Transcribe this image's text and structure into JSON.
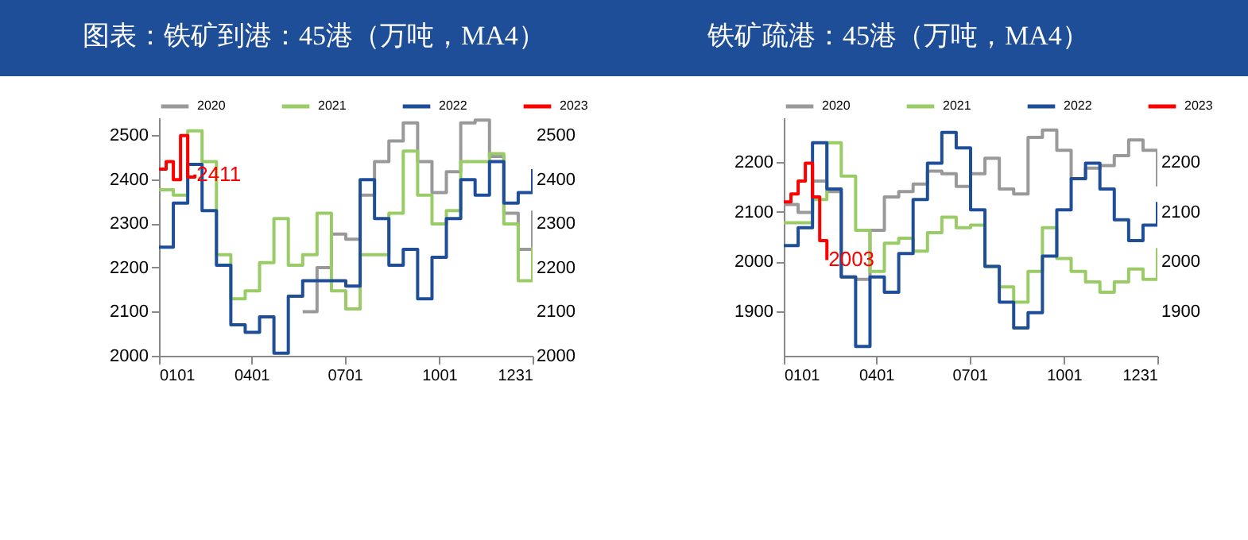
{
  "chart_data": [
    {
      "type": "step",
      "title": "图表：铁矿到港：45港（万吨，MA4）",
      "x": [
        "--01-01",
        "--01-15",
        "--01-29",
        "--02-12",
        "--02-26",
        "--03-12",
        "--03-26",
        "--04-09",
        "--04-23",
        "--05-07",
        "--05-21",
        "--06-04",
        "--06-18",
        "--07-02",
        "--07-16",
        "--07-30",
        "--08-13",
        "--08-27",
        "--09-10",
        "--09-24",
        "--10-08",
        "--10-22",
        "--11-05",
        "--11-19",
        "--12-03",
        "--12-17",
        "--12-31"
      ],
      "series": [
        {
          "name": "2020",
          "color": "#999999",
          "x": [
            "--05-21",
            "--06-04",
            "--06-18",
            "--07-02",
            "--07-16",
            "--07-30",
            "--08-13",
            "--08-27",
            "--09-10",
            "--09-24",
            "--10-08",
            "--10-22",
            "--11-05",
            "--11-19",
            "--12-03",
            "--12-17",
            "--12-31"
          ],
          "values": [
            2100,
            2200,
            2276,
            2264,
            2364,
            2440,
            2487,
            2528,
            2440,
            2370,
            2417,
            2528,
            2534,
            2452,
            2323,
            2241,
            2329
          ]
        },
        {
          "name": "2021",
          "color": "#99cc66",
          "values": [
            2376,
            2364,
            2510,
            2440,
            2229,
            2129,
            2147,
            2211,
            2311,
            2205,
            2229,
            2323,
            2147,
            2106,
            2229,
            2229,
            2323,
            2464,
            2364,
            2299,
            2329,
            2440,
            2440,
            2458,
            2299,
            2170,
            2246
          ]
        },
        {
          "name": "2022",
          "color": "#1f4e99",
          "values": [
            2246,
            2346,
            2434,
            2329,
            2205,
            2070,
            2053,
            2088,
            2006,
            2135,
            2170,
            2170,
            2170,
            2158,
            2399,
            2311,
            2205,
            2241,
            2129,
            2223,
            2311,
            2399,
            2364,
            2440,
            2346,
            2370,
            2423
          ]
        },
        {
          "name": "2023",
          "color": "#ff0000",
          "x": [
            "--01-01",
            "--01-08",
            "--01-15",
            "--01-22",
            "--01-29",
            "--02-05"
          ],
          "values": [
            2423,
            2440,
            2399,
            2499,
            2405,
            2411
          ]
        }
      ],
      "annotations": [
        {
          "text": "2411",
          "x": "--02-05",
          "y": 2411
        }
      ],
      "xlim": [
        "--01-01",
        "--12-31"
      ],
      "xticks": [
        {
          "value": "--01-01",
          "label": "0101"
        },
        {
          "value": "--04-01",
          "label": "0401"
        },
        {
          "value": "--07-01",
          "label": "0701"
        },
        {
          "value": "--10-01",
          "label": "1001"
        },
        {
          "value": "--12-31",
          "label": "1231"
        }
      ],
      "ylim": [
        2000,
        2540
      ],
      "yticks": [
        2000,
        2100,
        2200,
        2300,
        2400,
        2500
      ],
      "y2lim": [
        2000,
        2540
      ],
      "y2ticks": [
        2000,
        2100,
        2200,
        2300,
        2400,
        2500
      ],
      "legend": "top"
    },
    {
      "type": "step",
      "title": "铁矿疏港：45港（万吨，MA4）",
      "x": [
        "--01-01",
        "--01-15",
        "--01-29",
        "--02-12",
        "--02-26",
        "--03-12",
        "--03-26",
        "--04-09",
        "--04-23",
        "--05-07",
        "--05-21",
        "--06-04",
        "--06-18",
        "--07-02",
        "--07-16",
        "--07-30",
        "--08-13",
        "--08-27",
        "--09-10",
        "--09-24",
        "--10-08",
        "--10-22",
        "--11-05",
        "--11-19",
        "--12-03",
        "--12-17",
        "--12-31"
      ],
      "series": [
        {
          "name": "2020",
          "color": "#999999",
          "values": [
            2115,
            2099,
            2162,
            2141,
            1969,
            1964,
            2063,
            2130,
            2141,
            2156,
            2182,
            2177,
            2151,
            2177,
            2208,
            2146,
            2136,
            2250,
            2265,
            2224,
            2167,
            2188,
            2193,
            2213,
            2245,
            2224,
            2151
          ]
        },
        {
          "name": "2021",
          "color": "#99cc66",
          "values": [
            2078,
            2078,
            2125,
            2239,
            2172,
            2063,
            1980,
            2037,
            2047,
            2021,
            2058,
            2089,
            2068,
            2073,
            1990,
            1949,
            1918,
            1980,
            2068,
            2006,
            1980,
            1959,
            1938,
            1959,
            1985,
            1964,
            2027
          ]
        },
        {
          "name": "2022",
          "color": "#1f4e99",
          "values": [
            2032,
            2068,
            2239,
            2146,
            1969,
            1829,
            1969,
            1938,
            2016,
            2125,
            2198,
            2260,
            2229,
            2104,
            1990,
            1918,
            1866,
            1897,
            2011,
            2104,
            2167,
            2198,
            2146,
            2084,
            2042,
            2073,
            2120
          ]
        },
        {
          "name": "2023",
          "color": "#ff0000",
          "x": [
            "--01-01",
            "--01-08",
            "--01-15",
            "--01-22",
            "--01-29",
            "--02-05",
            "--02-12"
          ],
          "values": [
            2120,
            2136,
            2162,
            2198,
            2130,
            2042,
            2003
          ]
        }
      ],
      "annotations": [
        {
          "text": "2003",
          "x": "--02-12",
          "y": 2003
        }
      ],
      "xlim": [
        "--01-01",
        "--12-31"
      ],
      "xticks": [
        {
          "value": "--01-01",
          "label": "0101"
        },
        {
          "value": "--04-01",
          "label": "0401"
        },
        {
          "value": "--07-01",
          "label": "0701"
        },
        {
          "value": "--10-01",
          "label": "1001"
        },
        {
          "value": "--12-31",
          "label": "1231"
        }
      ],
      "ylim": [
        1810,
        2290
      ],
      "yticks": [
        1900,
        2000,
        2100,
        2200
      ],
      "y2lim": [
        1810,
        2290
      ],
      "y2ticks": [
        1900,
        2000,
        2100,
        2200
      ],
      "legend": "top"
    }
  ]
}
